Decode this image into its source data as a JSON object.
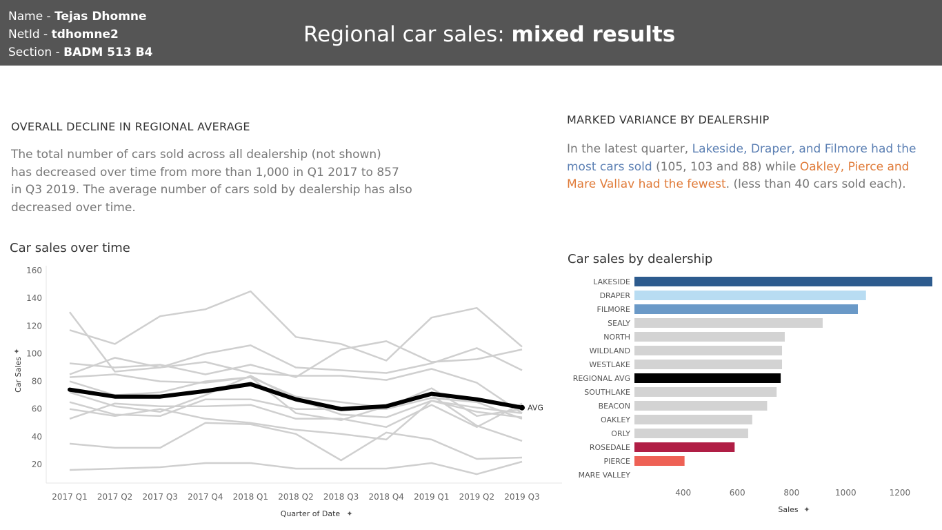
{
  "header": {
    "name_label": "Name - ",
    "name_value": "Tejas Dhomne",
    "netid_label": "NetId - ",
    "netid_value": "tdhomne2",
    "section_label": "Section - ",
    "section_value": "BADM 513 B4",
    "title_plain": "Regional car sales: ",
    "title_bold": "mixed results"
  },
  "left_panel": {
    "heading": "OVERALL DECLINE IN REGIONAL AVERAGE",
    "lines": [
      "The total number of cars sold across all dealership (not shown)",
      "has decreased over time from more than 1,000 in Q1 2017 to 857",
      "in Q3 2019. The average number of cars sold by dealership has also",
      "decreased over time."
    ]
  },
  "right_panel": {
    "heading": "MARKED VARIANCE BY DEALERSHIP",
    "p1": "In the latest quarter, ",
    "p2": "Lakeside, Draper, and Filmore had the most cars sold",
    "p3": " (105, 103 and 88) while ",
    "p4": "Oakley, Pierce and Mare Vallav had the fewest",
    "p5": ". (less than 40 cars sold each)."
  },
  "colors": {
    "header_bg": "#555555",
    "grey_line": "#cfcfcf",
    "avg_line": "#000000",
    "blue_text": "#5b7fb3",
    "orange_text": "#e07b39"
  },
  "chart_data": [
    {
      "type": "line",
      "title": "Car sales over time",
      "xlabel": "Quarter of Date",
      "ylabel": "Car Sales",
      "ylim": [
        10,
        160
      ],
      "yticks": [
        20,
        40,
        60,
        80,
        100,
        120,
        140,
        160
      ],
      "categories": [
        "2017 Q1",
        "2017 Q2",
        "2017 Q3",
        "2017 Q4",
        "2018 Q1",
        "2018 Q2",
        "2018 Q3",
        "2018 Q4",
        "2019 Q1",
        "2019 Q2",
        "2019 Q3"
      ],
      "series": [
        {
          "values": [
            130,
            87,
            90,
            100,
            106,
            90,
            88,
            86,
            93,
            104,
            88
          ]
        },
        {
          "values": [
            117,
            107,
            127,
            132,
            145,
            112,
            107,
            95,
            126,
            133,
            105
          ]
        },
        {
          "values": [
            93,
            90,
            92,
            85,
            92,
            83,
            103,
            109,
            94,
            96,
            103
          ]
        },
        {
          "values": [
            85,
            97,
            90,
            94,
            86,
            84,
            84,
            81,
            89,
            79,
            57
          ]
        },
        {
          "values": [
            83,
            85,
            80,
            79,
            83,
            57,
            52,
            62,
            70,
            48,
            37
          ]
        },
        {
          "values": [
            80,
            70,
            72,
            80,
            83,
            69,
            65,
            61,
            75,
            55,
            60
          ]
        },
        {
          "values": [
            72,
            62,
            58,
            70,
            84,
            67,
            56,
            54,
            66,
            58,
            54
          ]
        },
        {
          "values": [
            65,
            56,
            55,
            67,
            67,
            60,
            60,
            60,
            68,
            65,
            53
          ]
        },
        {
          "values": [
            60,
            55,
            60,
            53,
            50,
            45,
            42,
            38,
            66,
            61,
            57
          ]
        },
        {
          "values": [
            53,
            64,
            62,
            62,
            63,
            53,
            53,
            47,
            63,
            47,
            64
          ]
        },
        {
          "values": [
            35,
            32,
            32,
            50,
            49,
            42,
            23,
            43,
            38,
            24,
            25
          ]
        },
        {
          "values": [
            16,
            17,
            18,
            21,
            21,
            17,
            17,
            17,
            21,
            13,
            22
          ]
        },
        {
          "name": "AVG",
          "values": [
            74,
            69,
            69,
            73,
            78,
            67,
            60,
            62,
            71,
            67,
            61
          ],
          "highlight": true
        }
      ]
    },
    {
      "type": "bar",
      "title": "Car sales by dealership",
      "xlabel": "Sales",
      "xlim": [
        220,
        1320
      ],
      "xticks": [
        400,
        600,
        800,
        1000,
        1200
      ],
      "categories": [
        "LAKESIDE",
        "DRAPER",
        "FILMORE",
        "SEALY",
        "NORTH",
        "WILDLAND",
        "WESTLAKE",
        "REGIONAL AVG",
        "SOUTHLAKE",
        "BEACON",
        "OAKLEY",
        "ORLY",
        "ROSEDALE",
        "PIERCE",
        "MARE VALLEY"
      ],
      "values": [
        1320,
        1075,
        1045,
        915,
        775,
        765,
        765,
        760,
        745,
        710,
        655,
        640,
        590,
        405,
        220
      ],
      "colors": [
        "#2d5b8e",
        "#b8dcf2",
        "#6a99c7",
        "#d3d3d3",
        "#d3d3d3",
        "#d3d3d3",
        "#d3d3d3",
        "#000000",
        "#d3d3d3",
        "#d3d3d3",
        "#d3d3d3",
        "#d3d3d3",
        "#b01e45",
        "#ee6155",
        "#d3d3d3"
      ]
    }
  ]
}
